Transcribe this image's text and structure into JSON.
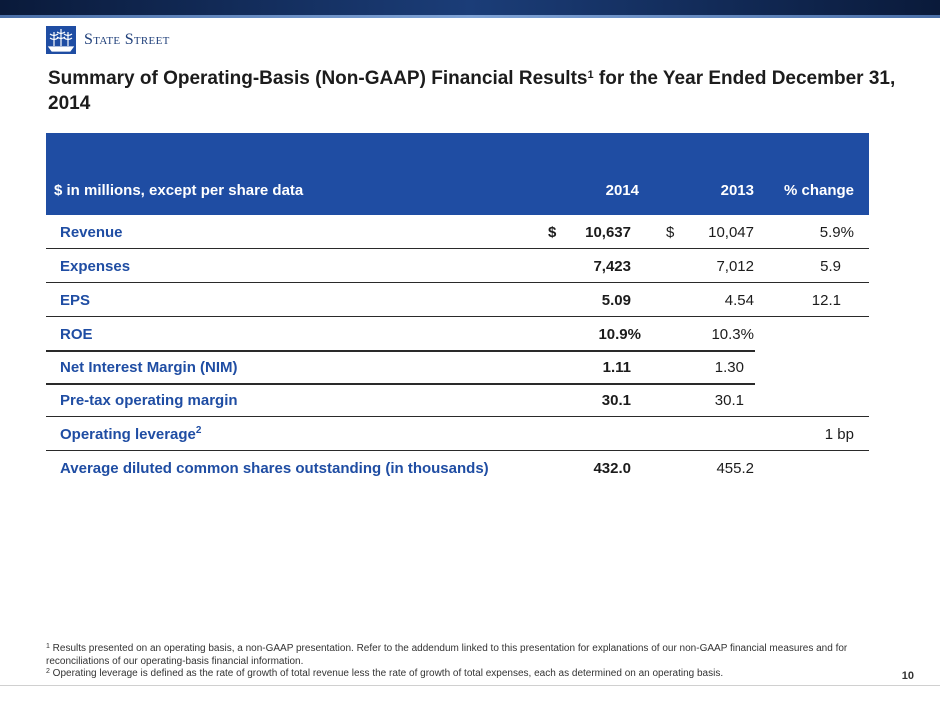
{
  "brand": {
    "logo_icon": "ship-icon",
    "name": "State Street",
    "primary_color": "#1f4da3"
  },
  "title": {
    "main": "Summary of Operating-Basis (Non-GAAP) Financial Results",
    "sup": "1",
    "rest": " for the Year Ended December 31, 2014"
  },
  "table": {
    "headers": {
      "label": "$ in millions, except per share data",
      "col2014": "2014",
      "col2013": "2013",
      "change": "% change"
    },
    "rows": [
      {
        "label": "Revenue",
        "sup": "",
        "cur2014": "$",
        "v2014": "10,637",
        "cur2013": "$",
        "v2013": "10,047",
        "change": "5.9%"
      },
      {
        "label": "Expenses",
        "sup": "",
        "cur2014": "",
        "v2014": "7,423",
        "cur2013": "",
        "v2013": "7,012",
        "change": "5.9"
      },
      {
        "label": "EPS",
        "sup": "",
        "cur2014": "",
        "v2014": "5.09",
        "cur2013": "",
        "v2013": "4.54",
        "change": "12.1"
      },
      {
        "label": "ROE",
        "sup": "",
        "cur2014": "",
        "v2014": "10.9%",
        "cur2013": "",
        "v2013": "10.3%",
        "change": ""
      },
      {
        "label": "Net Interest Margin (NIM)",
        "sup": "",
        "cur2014": "",
        "v2014": "1.11",
        "cur2013": "",
        "v2013": "1.30",
        "change": ""
      },
      {
        "label": "Pre-tax operating margin",
        "sup": "",
        "cur2014": "",
        "v2014": "30.1",
        "cur2013": "",
        "v2013": "30.1",
        "change": ""
      },
      {
        "label": "Operating leverage",
        "sup": "2",
        "cur2014": "",
        "v2014": "",
        "cur2013": "",
        "v2013": "",
        "change": "1 bp"
      },
      {
        "label": "Average diluted common shares outstanding (in thousands)",
        "sup": "",
        "cur2014": "",
        "v2014": "432.0",
        "cur2013": "",
        "v2013": "455.2",
        "change": ""
      }
    ]
  },
  "footnotes": [
    {
      "sup": "1",
      "text": " Results presented on an operating basis, a non-GAAP presentation. Refer to the addendum linked to this presentation for explanations of our non-GAAP financial measures and for reconciliations of our operating-basis financial information."
    },
    {
      "sup": "2",
      "text": " Operating leverage is defined as the rate of growth of total revenue less the rate of growth of total expenses, each as determined on an operating basis."
    }
  ],
  "page_number": "10"
}
